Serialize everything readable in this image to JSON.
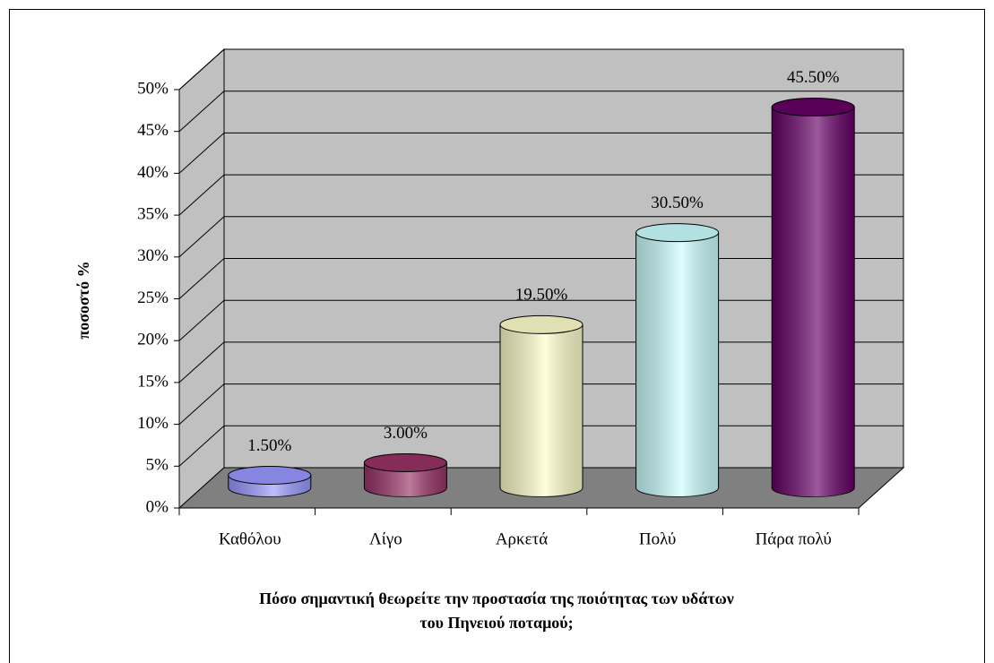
{
  "chart_data": {
    "type": "bar3d",
    "ylabel": "ποσοστό %",
    "xlabel": [
      "Πόσο σημαντική θεωρείτε την προστασία της ποιότητας των υδάτων",
      "του Πηνειού ποταμού;"
    ],
    "categories": [
      "Καθόλου",
      "Λίγο",
      "Αρκετά",
      "Πολύ",
      "Πάρα πολύ"
    ],
    "values": [
      1.5,
      3,
      19.5,
      30.5,
      45.5
    ],
    "value_labels": [
      "1.50%",
      "3.00%",
      "19.50%",
      "30.50%",
      "45.50%"
    ],
    "colors": [
      "#9999ff",
      "#993366",
      "#ffffcc",
      "#ccffff",
      "#660066"
    ],
    "ylim": [
      0,
      50
    ],
    "yticks": [
      {
        "value": 0,
        "label": "0%"
      },
      {
        "value": 5,
        "label": "5%"
      },
      {
        "value": 10,
        "label": "10%"
      },
      {
        "value": 15,
        "label": "15%"
      },
      {
        "value": 20,
        "label": "20%"
      },
      {
        "value": 25,
        "label": "25%"
      },
      {
        "value": 30,
        "label": "30%"
      },
      {
        "value": 35,
        "label": "35%"
      },
      {
        "value": 40,
        "label": "40%"
      },
      {
        "value": 45,
        "label": "45%"
      },
      {
        "value": 50,
        "label": "50%"
      }
    ],
    "grid": true
  }
}
